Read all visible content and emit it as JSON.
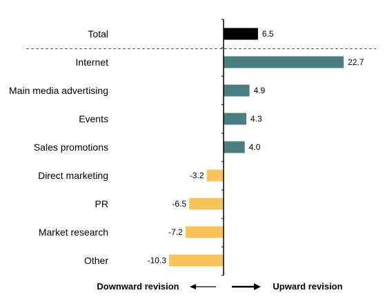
{
  "chart_data": {
    "type": "bar",
    "orientation": "horizontal",
    "categories": [
      "Total",
      "Internet",
      "Main media advertising",
      "Events",
      "Sales promotions",
      "Direct marketing",
      "PR",
      "Market research",
      "Other"
    ],
    "values": [
      6.5,
      22.7,
      4.9,
      4.3,
      4.0,
      -3.2,
      -6.5,
      -7.2,
      -10.3
    ],
    "value_labels": [
      "6.5",
      "22.7",
      "4.9",
      "4.3",
      "4.0",
      "-3.2",
      "-6.5",
      "-7.2",
      "-10.3"
    ],
    "xlim": [
      -10.3,
      22.7
    ],
    "separator_after": "Total",
    "colors": {
      "total": "#000000",
      "positive": "#4a7e7f",
      "negative": "#f9c55a",
      "axis": "#000000",
      "separator": "#555555"
    },
    "legend": {
      "left_label": "Downward revision",
      "right_label": "Upward revision",
      "left_arrow": "left-arrow",
      "right_arrow": "right-arrow"
    },
    "grid": false
  }
}
